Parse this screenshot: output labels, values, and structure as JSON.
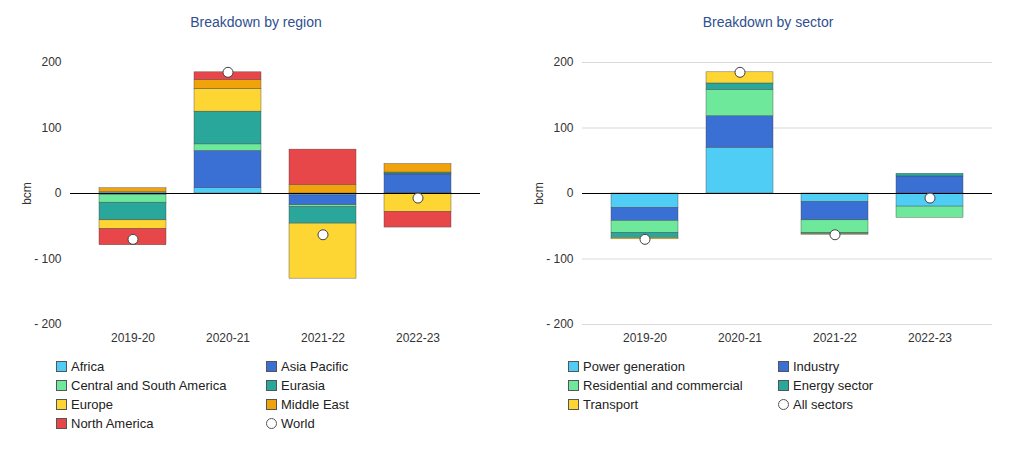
{
  "chart_data": [
    {
      "type": "bar",
      "stacked": true,
      "title": "Breakdown by region",
      "ylabel": "bcm",
      "legend": "bottom",
      "grid": false,
      "categories": [
        "2019-20",
        "2020-21",
        "2021-22",
        "2022-23"
      ],
      "ylim": [
        -200,
        200
      ],
      "yticks": [
        {
          "value": -200,
          "label": "- 200"
        },
        {
          "value": -100,
          "label": "- 100"
        },
        0,
        100,
        200
      ],
      "series": [
        {
          "name": "Africa",
          "color": "#4fcdf5",
          "values": [
            2,
            8,
            -3,
            1
          ]
        },
        {
          "name": "Asia Pacific",
          "color": "#3a6fd4",
          "values": [
            -2,
            57,
            -15,
            28
          ]
        },
        {
          "name": "Central and South America",
          "color": "#6ee89b",
          "values": [
            -12,
            10,
            -3,
            1
          ]
        },
        {
          "name": "Eurasia",
          "color": "#2aa79b",
          "values": [
            -27,
            50,
            -25,
            2
          ]
        },
        {
          "name": "Europe",
          "color": "#fdd633",
          "values": [
            -13,
            35,
            -84,
            -28
          ]
        },
        {
          "name": "Middle East",
          "color": "#f0a30a",
          "values": [
            6,
            13,
            13,
            13
          ]
        },
        {
          "name": "North America",
          "color": "#e8474a",
          "values": [
            -25,
            12,
            54,
            -24
          ]
        },
        {
          "name": "World",
          "type": "scatter",
          "marker": "circle",
          "color": "#ffffff",
          "values": [
            -70,
            185,
            -63,
            -7
          ]
        }
      ]
    },
    {
      "type": "bar",
      "stacked": true,
      "title": "Breakdown by sector",
      "ylabel": "bcm",
      "legend": "bottom",
      "grid": true,
      "categories": [
        "2019-20",
        "2020-21",
        "2021-22",
        "2022-23"
      ],
      "ylim": [
        -200,
        200
      ],
      "yticks": [
        {
          "value": -200,
          "label": "- 200"
        },
        {
          "value": -100,
          "label": "- 100"
        },
        0,
        100,
        200
      ],
      "series": [
        {
          "name": "Power generation",
          "color": "#4fcdf5",
          "values": [
            -22,
            70,
            -13,
            -20
          ]
        },
        {
          "name": "Industry",
          "color": "#3a6fd4",
          "values": [
            -20,
            48,
            -28,
            26
          ]
        },
        {
          "name": "Residential and commercial",
          "color": "#6ee89b",
          "values": [
            -18,
            40,
            -19,
            -17
          ]
        },
        {
          "name": "Energy sector",
          "color": "#2aa79b",
          "values": [
            -8,
            10,
            -2,
            4
          ]
        },
        {
          "name": "Transport",
          "color": "#fdd633",
          "values": [
            -2,
            17,
            -1,
            0
          ]
        },
        {
          "name": "All sectors",
          "type": "scatter",
          "marker": "circle",
          "color": "#ffffff",
          "values": [
            -70,
            185,
            -63,
            -7
          ]
        }
      ]
    }
  ]
}
